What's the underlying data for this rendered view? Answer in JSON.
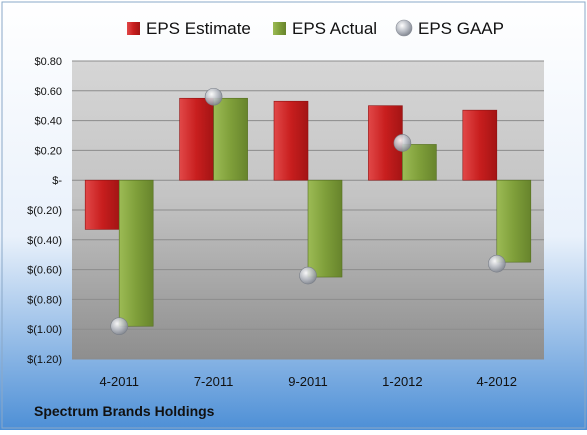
{
  "chart_data": {
    "type": "bar",
    "categories": [
      "4-2011",
      "7-2011",
      "9-2011",
      "1-2012",
      "4-2012"
    ],
    "series": [
      {
        "name": "EPS Estimate",
        "type": "bar",
        "color": "#cc2a2a",
        "values": [
          -0.33,
          0.55,
          0.53,
          0.5,
          0.47
        ]
      },
      {
        "name": "EPS Actual",
        "type": "bar",
        "color": "#7f9f3a",
        "values": [
          -0.98,
          0.55,
          -0.65,
          0.24,
          -0.55
        ]
      },
      {
        "name": "EPS GAAP",
        "type": "scatter",
        "color": "#b8bcc4",
        "values": [
          -0.98,
          0.56,
          -0.64,
          0.25,
          -0.56
        ]
      }
    ],
    "ylim": [
      -1.2,
      0.8
    ],
    "yticks": [
      0.8,
      0.6,
      0.4,
      0.2,
      0,
      -0.2,
      -0.4,
      -0.6,
      -0.8,
      -1.0,
      -1.2
    ],
    "ytick_labels": [
      "$0.80",
      "$0.60",
      "$0.40",
      "$0.20",
      "$-",
      "$(0.20)",
      "$(0.40)",
      "$(0.60)",
      "$(0.80)",
      "$(1.00)",
      "$(1.20)"
    ],
    "grid": true,
    "legend_position": "top"
  },
  "footer": {
    "company": "Spectrum Brands Holdings"
  }
}
